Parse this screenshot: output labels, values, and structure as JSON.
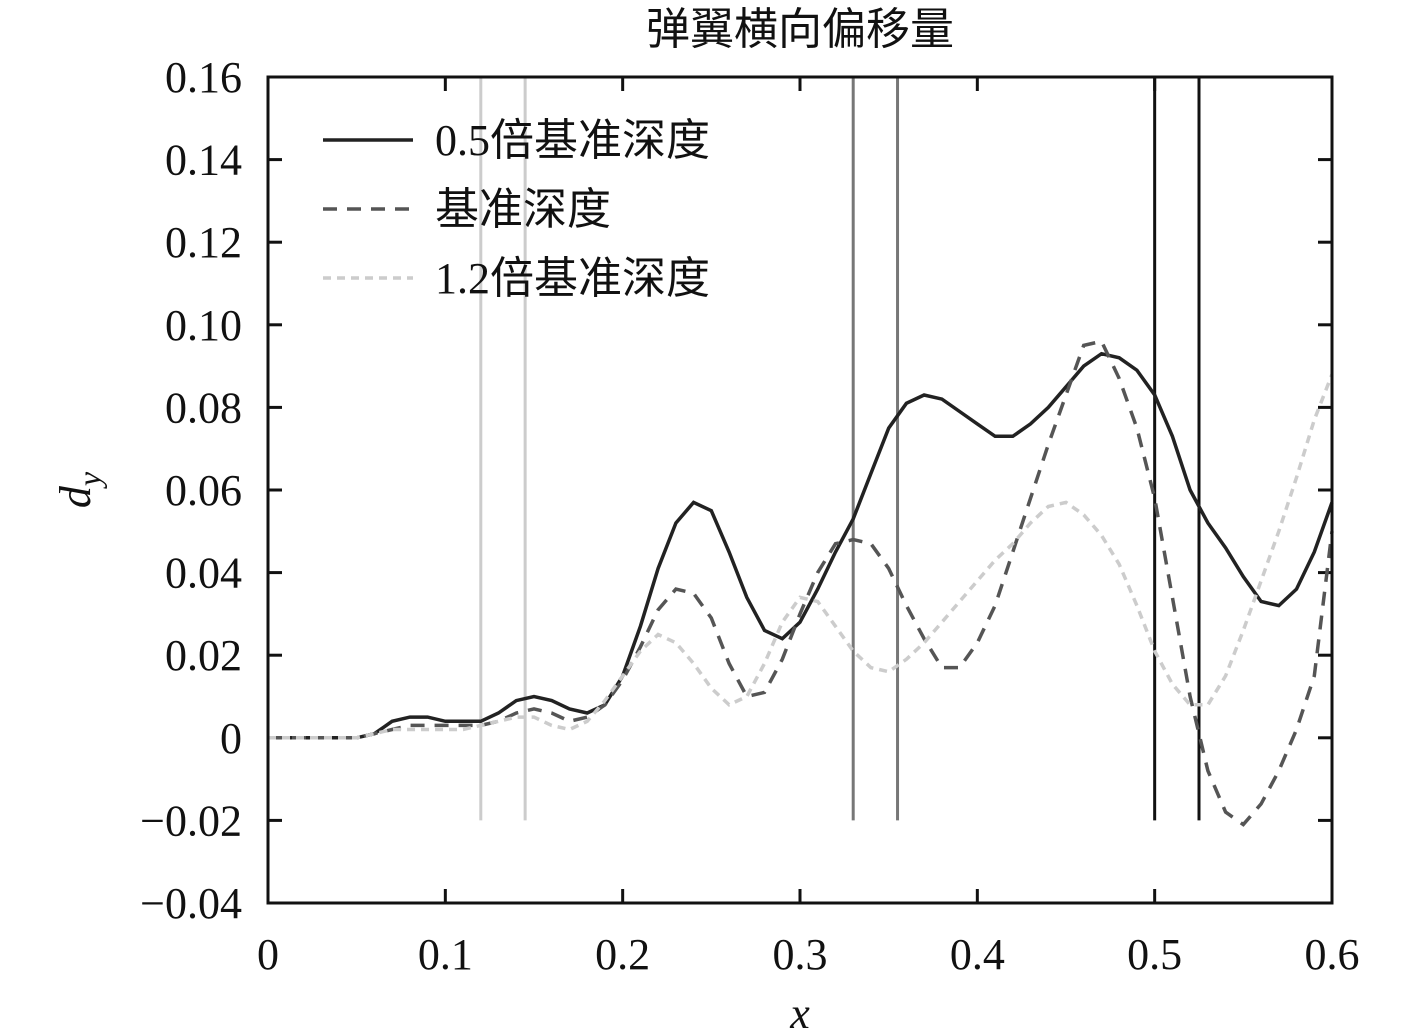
{
  "chart_data": {
    "type": "line",
    "title": "弹翼横向偏移量",
    "xlabel": "x",
    "ylabel": {
      "main": "d",
      "sub": "y"
    },
    "x": [
      0,
      0.01,
      0.02,
      0.03,
      0.04,
      0.05,
      0.06,
      0.07,
      0.08,
      0.09,
      0.1,
      0.11,
      0.12,
      0.13,
      0.14,
      0.15,
      0.16,
      0.17,
      0.18,
      0.19,
      0.2,
      0.21,
      0.22,
      0.23,
      0.24,
      0.25,
      0.26,
      0.27,
      0.28,
      0.29,
      0.3,
      0.31,
      0.32,
      0.33,
      0.34,
      0.35,
      0.36,
      0.37,
      0.38,
      0.39,
      0.4,
      0.41,
      0.42,
      0.43,
      0.44,
      0.45,
      0.46,
      0.47,
      0.48,
      0.49,
      0.5,
      0.51,
      0.52,
      0.53,
      0.54,
      0.55,
      0.56,
      0.57,
      0.58,
      0.59,
      0.6
    ],
    "series": [
      {
        "name": "0.5倍基准深度",
        "color": "#222222",
        "style": "solid",
        "values": [
          0,
          0,
          0,
          0,
          0,
          0,
          0.001,
          0.004,
          0.005,
          0.005,
          0.004,
          0.004,
          0.004,
          0.006,
          0.009,
          0.01,
          0.009,
          0.007,
          0.006,
          0.008,
          0.015,
          0.027,
          0.041,
          0.052,
          0.057,
          0.055,
          0.045,
          0.034,
          0.026,
          0.024,
          0.028,
          0.036,
          0.045,
          0.053,
          0.064,
          0.075,
          0.081,
          0.083,
          0.082,
          0.079,
          0.076,
          0.073,
          0.073,
          0.076,
          0.08,
          0.085,
          0.09,
          0.093,
          0.092,
          0.089,
          0.083,
          0.073,
          0.06,
          0.052,
          0.046,
          0.039,
          0.033,
          0.032,
          0.036,
          0.045,
          0.057
        ]
      },
      {
        "name": "基准深度",
        "color": "#555555",
        "style": "dashed",
        "values": [
          0,
          0,
          0,
          0,
          0,
          0,
          0.001,
          0.002,
          0.003,
          0.003,
          0.003,
          0.003,
          0.003,
          0.004,
          0.006,
          0.007,
          0.006,
          0.004,
          0.005,
          0.008,
          0.014,
          0.022,
          0.031,
          0.036,
          0.035,
          0.029,
          0.018,
          0.01,
          0.011,
          0.019,
          0.03,
          0.04,
          0.047,
          0.048,
          0.047,
          0.041,
          0.032,
          0.024,
          0.017,
          0.017,
          0.023,
          0.032,
          0.045,
          0.058,
          0.071,
          0.083,
          0.095,
          0.096,
          0.087,
          0.075,
          0.058,
          0.034,
          0.01,
          -0.008,
          -0.018,
          -0.021,
          -0.016,
          -0.008,
          0.002,
          0.015,
          0.05
        ]
      },
      {
        "name": "1.2倍基准深度",
        "color": "#cccccc",
        "style": "dotted",
        "values": [
          0,
          0,
          0,
          0,
          0,
          0,
          0.001,
          0.002,
          0.002,
          0.002,
          0.002,
          0.002,
          0.003,
          0.004,
          0.005,
          0.005,
          0.003,
          0.002,
          0.004,
          0.009,
          0.015,
          0.021,
          0.025,
          0.023,
          0.018,
          0.012,
          0.008,
          0.01,
          0.018,
          0.028,
          0.034,
          0.033,
          0.027,
          0.021,
          0.017,
          0.016,
          0.019,
          0.023,
          0.028,
          0.033,
          0.038,
          0.043,
          0.047,
          0.052,
          0.056,
          0.057,
          0.054,
          0.049,
          0.042,
          0.032,
          0.021,
          0.013,
          0.008,
          0.008,
          0.015,
          0.026,
          0.038,
          0.05,
          0.063,
          0.077,
          0.088
        ]
      }
    ],
    "vlines": [
      {
        "x": 0.12,
        "color": "#cccccc"
      },
      {
        "x": 0.145,
        "color": "#cccccc"
      },
      {
        "x": 0.33,
        "color": "#777777"
      },
      {
        "x": 0.355,
        "color": "#777777"
      },
      {
        "x": 0.5,
        "color": "#111111"
      },
      {
        "x": 0.525,
        "color": "#111111"
      }
    ],
    "vline_ylim": [
      -0.02,
      0.16
    ],
    "xlim": [
      0,
      0.6
    ],
    "ylim": [
      -0.04,
      0.16
    ],
    "xticks": [
      0,
      0.1,
      0.2,
      0.3,
      0.4,
      0.5,
      0.6
    ],
    "yticks": [
      {
        "value": -0.04,
        "label": "−0.04"
      },
      {
        "value": -0.02,
        "label": "−0.02"
      },
      0,
      0.02,
      0.04,
      0.06,
      0.08,
      {
        "value": 0.1,
        "label": "0.10"
      },
      0.12,
      0.14,
      0.16
    ],
    "legend": "upper-left",
    "grid": false
  }
}
